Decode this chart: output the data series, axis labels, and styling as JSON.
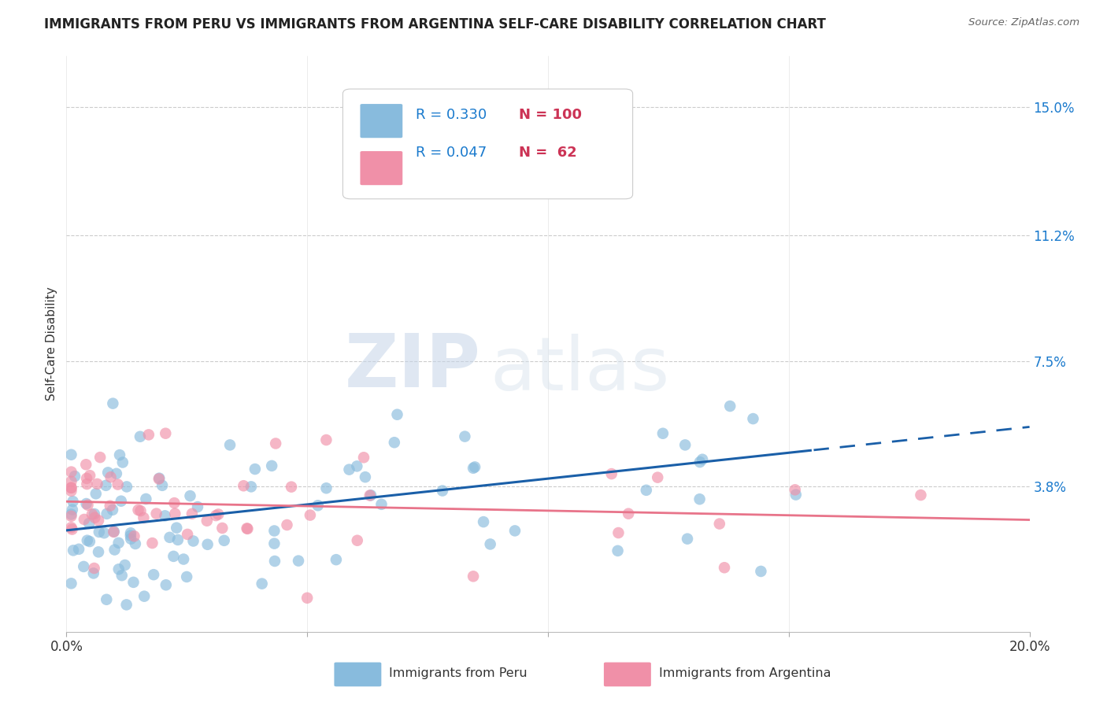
{
  "title": "IMMIGRANTS FROM PERU VS IMMIGRANTS FROM ARGENTINA SELF-CARE DISABILITY CORRELATION CHART",
  "source": "Source: ZipAtlas.com",
  "ylabel": "Self-Care Disability",
  "xlabel_peru": "Immigrants from Peru",
  "xlabel_argentina": "Immigrants from Argentina",
  "r_peru": 0.33,
  "n_peru": 100,
  "r_argentina": 0.047,
  "n_argentina": 62,
  "xlim": [
    0.0,
    0.2
  ],
  "ylim": [
    -0.005,
    0.165
  ],
  "yticks": [
    0.038,
    0.075,
    0.112,
    0.15
  ],
  "ytick_labels": [
    "3.8%",
    "7.5%",
    "11.2%",
    "15.0%"
  ],
  "xticks": [
    0.0,
    0.05,
    0.1,
    0.15,
    0.2
  ],
  "xtick_labels": [
    "0.0%",
    "",
    "",
    "",
    "20.0%"
  ],
  "color_peru": "#88bbdd",
  "color_argentina": "#f090a8",
  "line_color_peru": "#1a5fa8",
  "line_color_argentina": "#e8748a",
  "background_color": "#ffffff",
  "watermark_zip": "ZIP",
  "watermark_atlas": "atlas",
  "title_fontsize": 12,
  "legend_r_color": "#1a7acd",
  "legend_n_color": "#cc3355"
}
